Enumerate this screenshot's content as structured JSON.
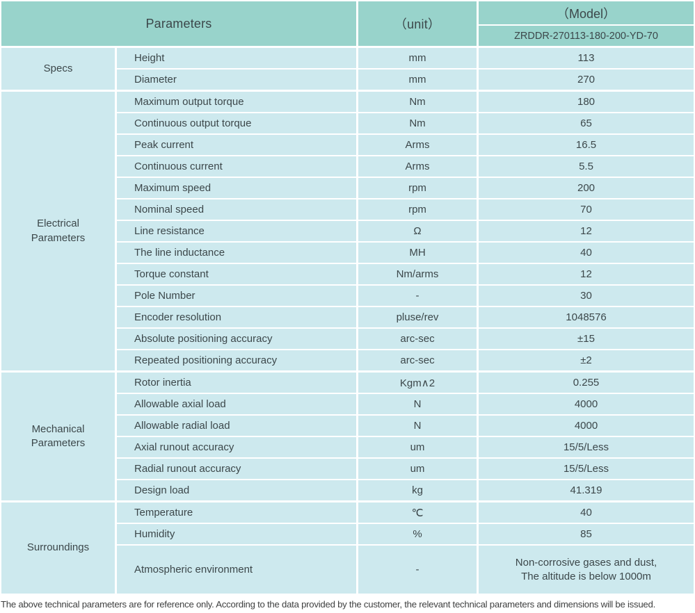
{
  "colors": {
    "header_bg": "#98d3cb",
    "cell_bg": "#cde9ee",
    "text": "#3c474a",
    "grid_white": "#ffffff"
  },
  "header": {
    "parameters_label": "Parameters",
    "unit_label": "（unit）",
    "model_label": "（Model）",
    "model_code": "ZRDDR-270113-180-200-YD-70"
  },
  "sections": [
    {
      "label": "Specs",
      "rows": [
        {
          "name": "Height",
          "unit": "mm",
          "value": "113"
        },
        {
          "name": "Diameter",
          "unit": "mm",
          "value": "270"
        }
      ]
    },
    {
      "label": "Electrical\nParameters",
      "rows": [
        {
          "name": "Maximum output torque",
          "unit": "Nm",
          "value": "180"
        },
        {
          "name": "Continuous output torque",
          "unit": "Nm",
          "value": "65"
        },
        {
          "name": "Peak current",
          "unit": "Arms",
          "value": "16.5"
        },
        {
          "name": "Continuous current",
          "unit": "Arms",
          "value": "5.5"
        },
        {
          "name": "Maximum speed",
          "unit": "rpm",
          "value": "200"
        },
        {
          "name": "Nominal speed",
          "unit": "rpm",
          "value": "70"
        },
        {
          "name": "Line resistance",
          "unit": "Ω",
          "value": "12"
        },
        {
          "name": "The line inductance",
          "unit": "MH",
          "value": "40"
        },
        {
          "name": "Torque constant",
          "unit": "Nm/arms",
          "value": "12"
        },
        {
          "name": "Pole Number",
          "unit": "-",
          "value": "30"
        },
        {
          "name": "Encoder resolution",
          "unit": "pluse/rev",
          "value": "1048576"
        },
        {
          "name": "Absolute positioning accuracy",
          "unit": "arc-sec",
          "value": "±15"
        },
        {
          "name": "Repeated positioning accuracy",
          "unit": "arc-sec",
          "value": "±2"
        }
      ]
    },
    {
      "label": "Mechanical\nParameters",
      "rows": [
        {
          "name": "Rotor inertia",
          "unit": "Kgm∧2",
          "value": "0.255"
        },
        {
          "name": "Allowable axial load",
          "unit": "N",
          "value": "4000"
        },
        {
          "name": "Allowable radial load",
          "unit": "N",
          "value": "4000"
        },
        {
          "name": "Axial runout accuracy",
          "unit": "um",
          "value": "15/5/Less"
        },
        {
          "name": "Radial runout accuracy",
          "unit": "um",
          "value": "15/5/Less"
        },
        {
          "name": "Design load",
          "unit": "kg",
          "value": "41.319"
        }
      ]
    },
    {
      "label": "Surroundings",
      "rows": [
        {
          "name": "Temperature",
          "unit": "℃",
          "value": "40"
        },
        {
          "name": "Humidity",
          "unit": "%",
          "value": "85"
        },
        {
          "name": "Atmospheric environment",
          "unit": "-",
          "value": "Non-corrosive gases and dust,\nThe altitude is below 1000m",
          "tall": true
        }
      ]
    }
  ],
  "footnote": "The above technical parameters are for reference only. According to the data provided by the customer, the relevant technical parameters and dimensions will be issued."
}
